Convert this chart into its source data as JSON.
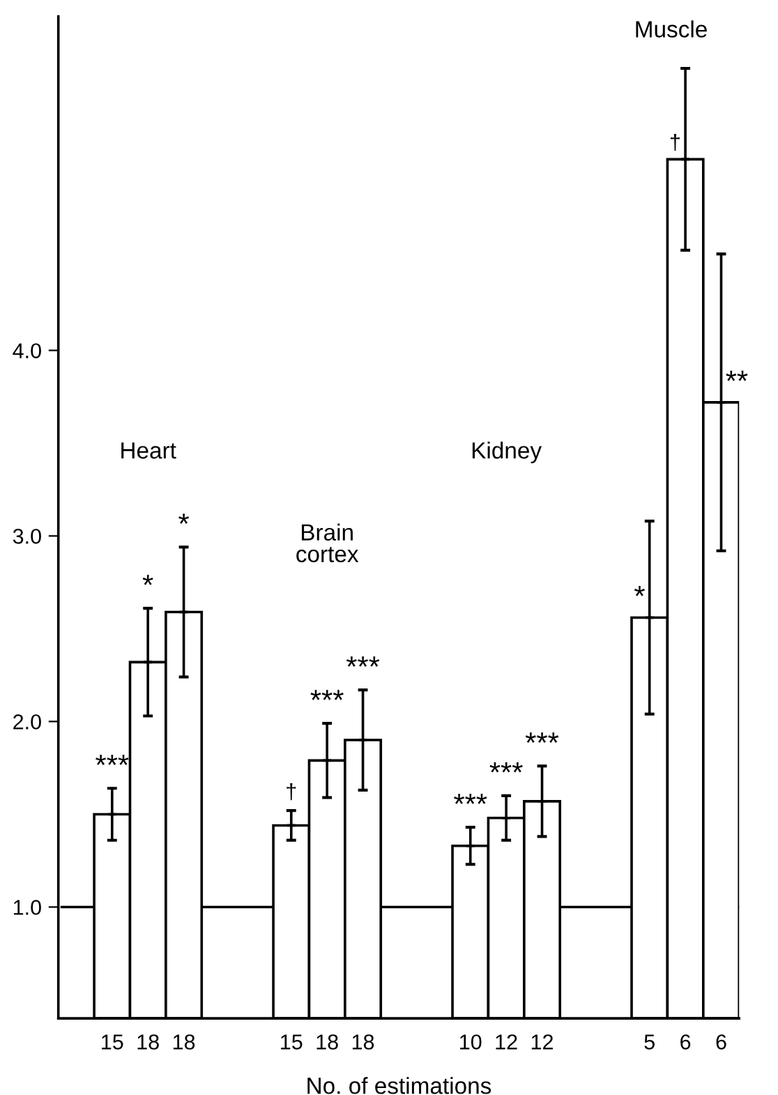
{
  "chart_data": {
    "type": "bar",
    "xlabel": "No. of estimations",
    "categories": [
      null,
      "15",
      "18",
      "18",
      null,
      null,
      "15",
      "18",
      "18",
      null,
      null,
      "10",
      "12",
      "12",
      null,
      null,
      "5",
      "6",
      "6"
    ],
    "values": [
      null,
      1.5,
      2.32,
      2.59,
      null,
      null,
      1.44,
      1.79,
      1.9,
      null,
      null,
      1.33,
      1.48,
      1.57,
      null,
      null,
      2.56,
      5.03,
      3.72
    ],
    "errors": [
      null,
      0.14,
      0.29,
      0.35,
      null,
      null,
      0.08,
      0.2,
      0.27,
      null,
      null,
      0.1,
      0.12,
      0.19,
      null,
      null,
      0.52,
      0.49,
      0.8
    ],
    "value_labels": [
      null,
      "***",
      "*",
      "*",
      null,
      null,
      "†",
      "***",
      "***",
      null,
      null,
      "***",
      "***",
      "***",
      null,
      null,
      "*",
      "†",
      "**"
    ],
    "color": "#ffffff",
    "annotations": [
      "Heart",
      "Brain\ncortex",
      "Kidney",
      "Muscle"
    ],
    "ref_lines": [
      {
        "axis": "y",
        "value": 1.0,
        "color": "#000000"
      }
    ],
    "ylim": [
      0.4,
      5.8
    ],
    "yticks": [
      {
        "value": 1.0,
        "label": "1.0"
      },
      {
        "value": 2.0,
        "label": "2.0"
      },
      {
        "value": 3.0,
        "label": "3.0"
      },
      {
        "value": 4.0,
        "label": "4.0"
      }
    ],
    "grid": false,
    "legend": false
  }
}
